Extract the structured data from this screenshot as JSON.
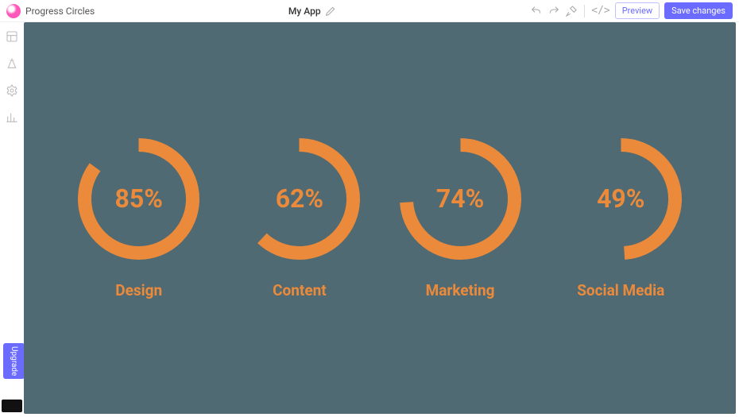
{
  "header": {
    "title_left": "Progress Circles",
    "app_name": "My App",
    "preview_label": "Preview",
    "save_label": "Save changes"
  },
  "sidebar": {
    "upgrade_label": "Upgrade"
  },
  "canvas": {
    "background_color": "#4f6a72",
    "accent_color": "#ec8a3b",
    "ring": {
      "stroke_width": 17,
      "radius": 68,
      "label_fontsize": 19,
      "pct_fontsize": 32,
      "pct_fontweight": 700
    },
    "items": [
      {
        "label": "Design",
        "value": 85,
        "display": "85%"
      },
      {
        "label": "Content",
        "value": 62,
        "display": "62%"
      },
      {
        "label": "Marketing",
        "value": 74,
        "display": "74%"
      },
      {
        "label": "Social Media",
        "value": 49,
        "display": "49%"
      }
    ]
  }
}
